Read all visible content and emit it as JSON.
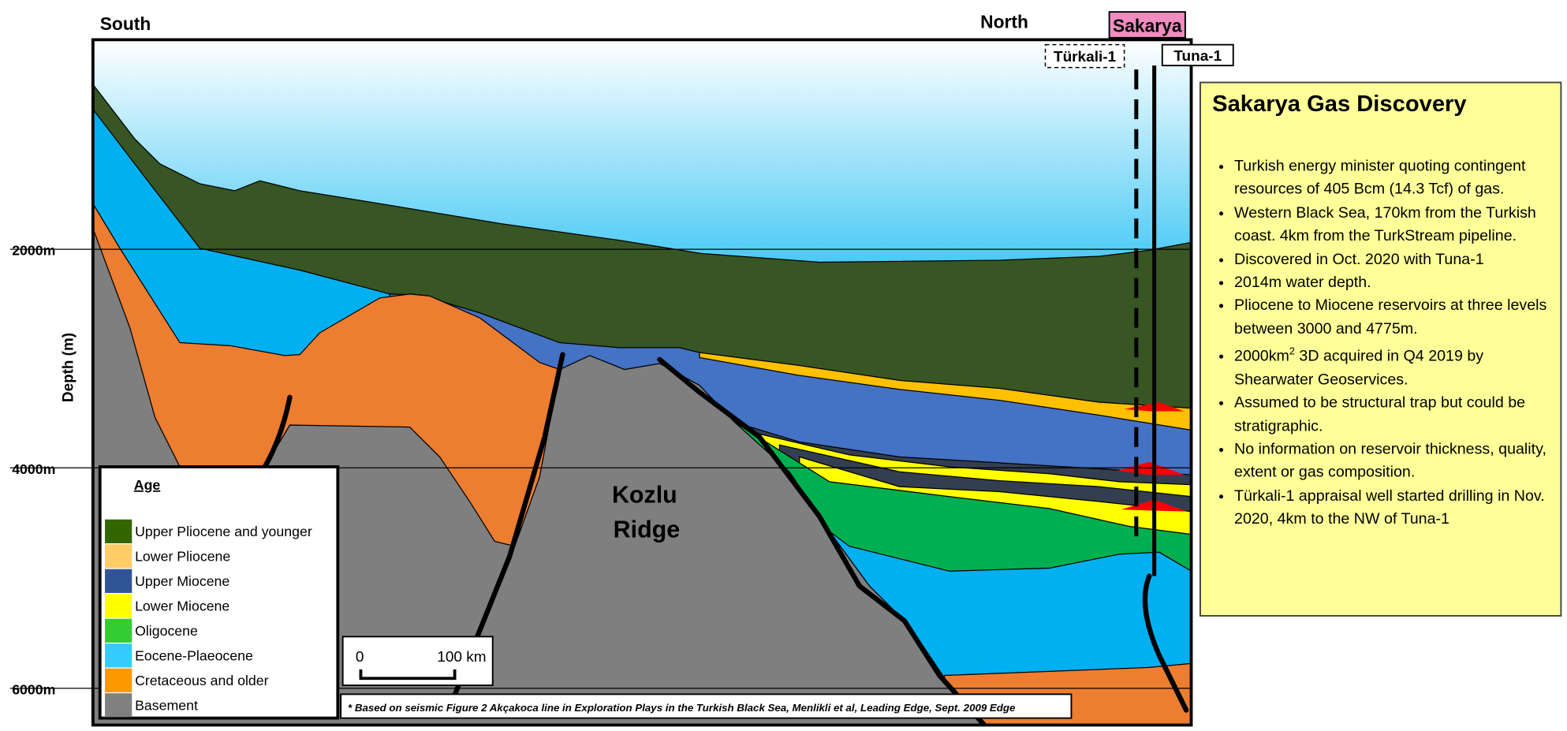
{
  "section": {
    "south_label": "South",
    "north_label": "North",
    "area_label": "Sakarya",
    "wells": [
      "Türkali-1",
      "Tuna-1"
    ],
    "depth_axis_label": "Depth (m)",
    "depth_ticks": [
      "2000m",
      "4000m",
      "6000m"
    ],
    "feature_label": [
      "Kozlu",
      "Ridge"
    ],
    "scale_bar": [
      "0",
      "100 km"
    ],
    "source_note": "* Based on seismic Figure 2 Akçakoca line in Exploration Plays in the Turkish Black Sea, Menlikli et al, Leading Edge, Sept. 2009 Edge"
  },
  "legend": {
    "title": "Age",
    "items": [
      {
        "label": "Upper Pliocene and younger",
        "color": "#336600"
      },
      {
        "label": "Lower Pliocene",
        "color": "#ffcc66"
      },
      {
        "label": "Upper Miocene",
        "color": "#2f5597"
      },
      {
        "label": "Lower Miocene",
        "color": "#ffff00"
      },
      {
        "label": "Oligocene",
        "color": "#33cc33"
      },
      {
        "label": "Eocene-Plaeocene",
        "color": "#33ccff"
      },
      {
        "label": "Cretaceous and older",
        "color": "#ff9900"
      },
      {
        "label": "Basement",
        "color": "#808080"
      }
    ]
  },
  "info_box": {
    "title": "Sakarya Gas Discovery",
    "bullets": [
      "Turkish energy minister quoting contingent resources of 405 Bcm (14.3 Tcf) of gas.",
      "Western Black Sea, 170km from the Turkish coast. 4km from the TurkStream pipeline.",
      "Discovered in Oct. 2020 with Tuna-1",
      "2014m water depth.",
      "Pliocene to Miocene reservoirs at three levels between 3000 and 4775m.",
      {
        "text": "2000km",
        "sup": "2",
        "rest": " 3D acquired in Q4 2019 by Shearwater Geoservices."
      },
      "Assumed to be structural trap but could be stratigraphic.",
      "No information on reservoir thickness, quality, extent or gas composition.",
      "Türkali-1 appraisal well started drilling in Nov. 2020, 4km to the NW of Tuna-1"
    ]
  }
}
